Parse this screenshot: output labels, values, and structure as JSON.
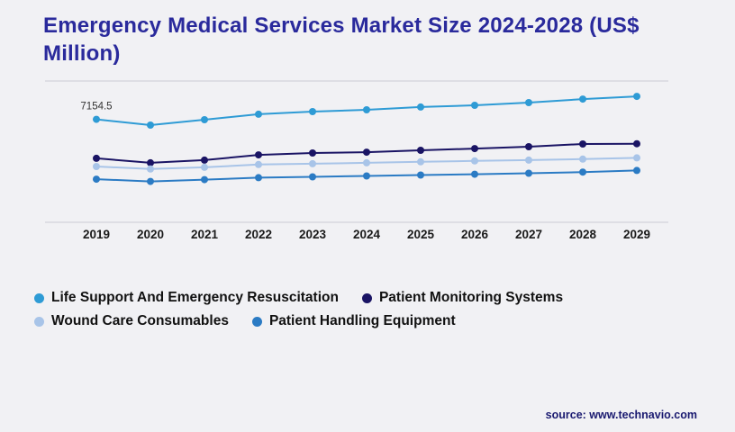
{
  "page": {
    "title": "Emergency Medical Services Market Size 2024-2028 (US$ Million)",
    "source": "source: www.technavio.com"
  },
  "chart_data": {
    "type": "line",
    "title": "Emergency Medical Services Market Size 2024-2028 (US$ Million)",
    "xlabel": "",
    "ylabel": "US$ Million",
    "categories": [
      "2019",
      "2020",
      "2021",
      "2022",
      "2023",
      "2024",
      "2025",
      "2026",
      "2027",
      "2028",
      "2029"
    ],
    "ylim": [
      3000,
      8700
    ],
    "grid": "top-and-bottom-horizontal-only",
    "legend_position": "bottom-left",
    "point_label": {
      "series": 0,
      "index": 0,
      "text": "7154.5"
    },
    "series": [
      {
        "name": "Life Support And Emergency Resuscitation",
        "color": "#2E9BD5",
        "values": [
          7154.5,
          6920,
          7140,
          7360,
          7465,
          7540,
          7650,
          7720,
          7830,
          7970,
          8080
        ]
      },
      {
        "name": "Patient Monitoring Systems",
        "color": "#1A1464",
        "values": [
          5580,
          5400,
          5510,
          5720,
          5795,
          5830,
          5905,
          5975,
          6050,
          6160,
          6170
        ]
      },
      {
        "name": "Wound Care Consumables",
        "color": "#A8C4E8",
        "values": [
          5250,
          5150,
          5220,
          5330,
          5365,
          5400,
          5440,
          5475,
          5510,
          5550,
          5600
        ]
      },
      {
        "name": "Patient Handling Equipment",
        "color": "#2B7BC4",
        "values": [
          4740,
          4650,
          4720,
          4800,
          4835,
          4870,
          4905,
          4940,
          4980,
          5025,
          5090
        ]
      }
    ]
  }
}
